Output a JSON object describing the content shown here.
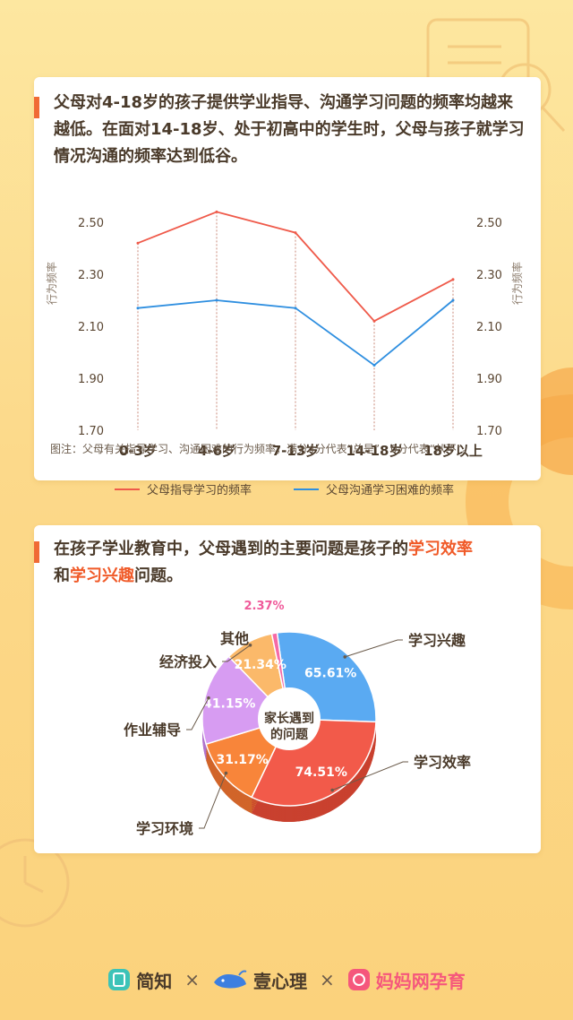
{
  "section1": {
    "heading": "父母对4-18岁的孩子提供学业指导、沟通学习问题的频率均越来越低。在面对14-18岁、处于初高中的学生时，父母与孩子就学习情况沟通的频率达到低谷。",
    "note": "图注：父母有关指导学习、沟通困难的行为频率，满分4分代表“总是”，0分代表“从不”。"
  },
  "section2": {
    "heading_parts": [
      "在孩子学业教育中，父母遇到的主要问题是孩子的",
      "学习效率",
      "和",
      "学习兴趣",
      "问题。"
    ],
    "center_label_1": "家长遇到",
    "center_label_2": "的问题"
  },
  "footer": {
    "brand1": "简知",
    "brand2": "壹心理",
    "brand3": "妈妈网孕育",
    "sep": "×"
  },
  "chart_data": [
    {
      "type": "line",
      "categories": [
        "0-3岁",
        "4-6岁",
        "7-13岁",
        "14-18岁",
        "18岁以上"
      ],
      "ylabel": "行为频率",
      "ylabel_right": "行为频率",
      "yticks": [
        "2.50",
        "2.30",
        "2.10",
        "1.90",
        "1.70"
      ],
      "ylim": [
        1.7,
        2.5
      ],
      "grid": false,
      "legend_position": "bottom",
      "series": [
        {
          "name": "父母指导学习的频率",
          "color": "#ef5a4a",
          "values": [
            2.42,
            2.54,
            2.46,
            2.12,
            2.28
          ]
        },
        {
          "name": "父母沟通学习困难的频率",
          "color": "#2f8fe0",
          "values": [
            2.17,
            2.2,
            2.17,
            1.95,
            2.2
          ]
        }
      ]
    },
    {
      "type": "pie",
      "categories": [
        "学习兴趣",
        "学习效率",
        "学习环境",
        "作业辅导",
        "经济投入",
        "其他"
      ],
      "values": [
        65.61,
        74.51,
        31.17,
        41.15,
        21.34,
        2.37
      ],
      "labels": [
        "65.61%",
        "74.51%",
        "31.17%",
        "41.15%",
        "21.34%",
        "2.37%"
      ],
      "colors": [
        "#5aaaf2",
        "#f25a4a",
        "#f8853a",
        "#d79cf2",
        "#fbb96a",
        "#f56aa6"
      ],
      "dark_colors": [
        "#3b86c8",
        "#c9412f",
        "#d1652a",
        "#b174cc",
        "#d6944a",
        "#c94f85"
      ]
    }
  ]
}
